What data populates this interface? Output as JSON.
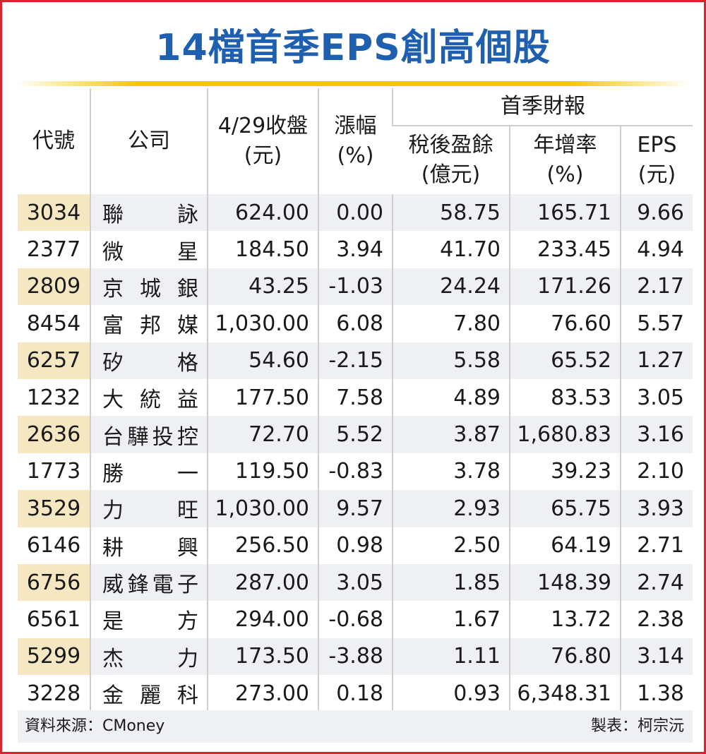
{
  "title": "14檔首季EPS創高個股",
  "headers": {
    "code": "代號",
    "company": "公司",
    "close": "4/29收盤\n(元)",
    "change": "漲幅\n(%)",
    "group": "首季財報",
    "profit": "稅後盈餘\n(億元)",
    "yoy": "年增率\n(%)",
    "eps": "EPS\n(元)"
  },
  "rows": [
    {
      "code": "3034",
      "company": "聯詠",
      "close": "624.00",
      "change": "0.00",
      "profit": "58.75",
      "yoy": "165.71",
      "eps": "9.66"
    },
    {
      "code": "2377",
      "company": "微星",
      "close": "184.50",
      "change": "3.94",
      "profit": "41.70",
      "yoy": "233.45",
      "eps": "4.94"
    },
    {
      "code": "2809",
      "company": "京城銀",
      "close": "43.25",
      "change": "-1.03",
      "profit": "24.24",
      "yoy": "171.26",
      "eps": "2.17"
    },
    {
      "code": "8454",
      "company": "富邦媒",
      "close": "1,030.00",
      "change": "6.08",
      "profit": "7.80",
      "yoy": "76.60",
      "eps": "5.57"
    },
    {
      "code": "6257",
      "company": "矽格",
      "close": "54.60",
      "change": "-2.15",
      "profit": "5.58",
      "yoy": "65.52",
      "eps": "1.27"
    },
    {
      "code": "1232",
      "company": "大統益",
      "close": "177.50",
      "change": "7.58",
      "profit": "4.89",
      "yoy": "83.53",
      "eps": "3.05"
    },
    {
      "code": "2636",
      "company": "台驊投控",
      "close": "72.70",
      "change": "5.52",
      "profit": "3.87",
      "yoy": "1,680.83",
      "eps": "3.16"
    },
    {
      "code": "1773",
      "company": "勝一",
      "close": "119.50",
      "change": "-0.83",
      "profit": "3.78",
      "yoy": "39.23",
      "eps": "2.10"
    },
    {
      "code": "3529",
      "company": "力旺",
      "close": "1,030.00",
      "change": "9.57",
      "profit": "2.93",
      "yoy": "65.75",
      "eps": "3.93"
    },
    {
      "code": "6146",
      "company": "耕興",
      "close": "256.50",
      "change": "0.98",
      "profit": "2.50",
      "yoy": "64.19",
      "eps": "2.71"
    },
    {
      "code": "6756",
      "company": "威鋒電子",
      "close": "287.00",
      "change": "3.05",
      "profit": "1.85",
      "yoy": "148.39",
      "eps": "2.74"
    },
    {
      "code": "6561",
      "company": "是方",
      "close": "294.00",
      "change": "-0.68",
      "profit": "1.67",
      "yoy": "13.72",
      "eps": "2.38"
    },
    {
      "code": "5299",
      "company": "杰力",
      "close": "173.50",
      "change": "-3.88",
      "profit": "1.11",
      "yoy": "76.80",
      "eps": "3.14"
    },
    {
      "code": "3228",
      "company": "金麗科",
      "close": "273.00",
      "change": "0.18",
      "profit": "0.93",
      "yoy": "6,348.31",
      "eps": "1.38"
    }
  ],
  "footer": {
    "source": "資料來源：CMoney",
    "credit": "製表：柯宗沅"
  },
  "colors": {
    "title": "#1f5fb0",
    "frame": "#d9232e",
    "accent_rule": "#f2c800",
    "band_gray": "#eef0f4",
    "band_code": "#f4e7c2"
  }
}
